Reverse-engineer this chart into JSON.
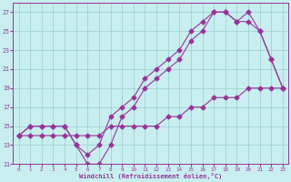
{
  "xlabel": "Windchill (Refroidissement éolien,°C)",
  "bg_color": "#c8eef0",
  "line_color": "#993399",
  "grid_color": "#99cccc",
  "curve1_x": [
    0,
    1,
    2,
    3,
    4,
    5,
    6,
    7,
    8,
    9,
    10,
    11,
    12,
    13,
    14,
    15,
    16,
    17,
    18,
    19,
    20,
    21,
    22,
    23
  ],
  "curve1_y": [
    14,
    15,
    15,
    15,
    15,
    13,
    11,
    11,
    13,
    16,
    17,
    19,
    20,
    21,
    22,
    24,
    25,
    27,
    27,
    26,
    26,
    25,
    22,
    19
  ],
  "curve2_x": [
    0,
    1,
    2,
    3,
    4,
    5,
    6,
    7,
    8,
    9,
    10,
    11,
    12,
    13,
    14,
    15,
    16,
    17,
    18,
    19,
    20,
    21,
    22,
    23
  ],
  "curve2_y": [
    14,
    15,
    15,
    15,
    15,
    13,
    12,
    13,
    16,
    17,
    18,
    20,
    21,
    22,
    23,
    25,
    26,
    27,
    27,
    26,
    27,
    25,
    22,
    19
  ],
  "curve3_x": [
    0,
    1,
    2,
    3,
    4,
    5,
    6,
    7,
    8,
    9,
    10,
    11,
    12,
    13,
    14,
    15,
    16,
    17,
    18,
    19,
    20,
    21,
    22,
    23
  ],
  "curve3_y": [
    14,
    14,
    14,
    14,
    14,
    14,
    14,
    14,
    15,
    15,
    15,
    15,
    15,
    16,
    16,
    17,
    17,
    18,
    18,
    18,
    19,
    19,
    19,
    19
  ],
  "ylim": [
    11,
    28
  ],
  "xlim": [
    -0.5,
    23.5
  ],
  "yticks": [
    11,
    13,
    15,
    17,
    19,
    21,
    23,
    25,
    27
  ],
  "xticks": [
    0,
    1,
    2,
    3,
    4,
    5,
    6,
    7,
    8,
    9,
    10,
    11,
    12,
    13,
    14,
    15,
    16,
    17,
    18,
    19,
    20,
    21,
    22,
    23
  ],
  "xtick_labels": [
    "0",
    "1",
    "2",
    "3",
    "4",
    "5",
    "6",
    "7",
    "8",
    "9",
    "10",
    "11",
    "12",
    "13",
    "14",
    "15",
    "16",
    "17",
    "18",
    "19",
    "20",
    "21",
    "22",
    "23"
  ]
}
